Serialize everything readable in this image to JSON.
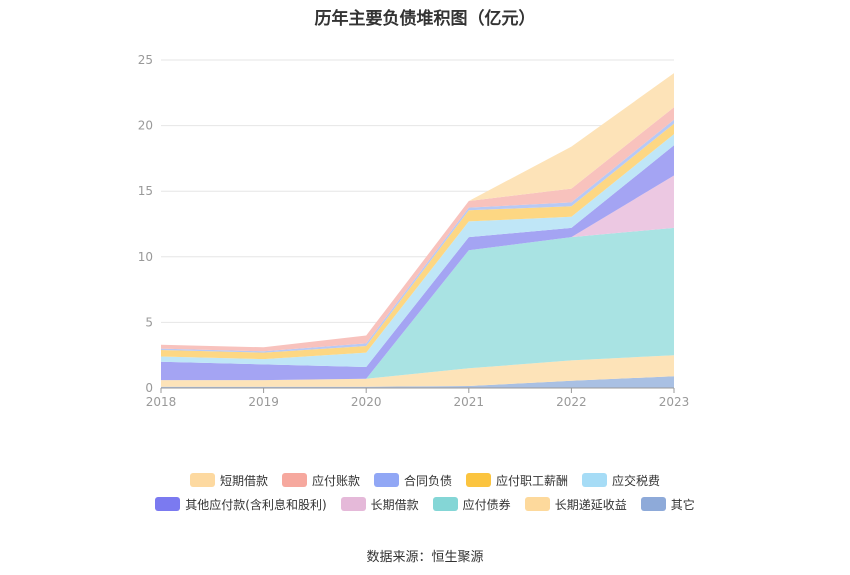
{
  "chart_data": {
    "type": "area",
    "stacked": true,
    "title": "历年主要负债堆积图（亿元）",
    "categories": [
      "2018",
      "2019",
      "2020",
      "2021",
      "2022",
      "2023"
    ],
    "ylim": [
      0,
      25
    ],
    "yticks": [
      0,
      5,
      10,
      15,
      20,
      25
    ],
    "grid": true,
    "legend_position": "bottom",
    "series": [
      {
        "name": "其它",
        "color": "#a9c0e3",
        "values": [
          0.1,
          0.1,
          0.1,
          0.15,
          0.55,
          0.9
        ]
      },
      {
        "name": "长期递延收益",
        "color": "#fde3b8",
        "values": [
          0.5,
          0.5,
          0.6,
          1.35,
          1.55,
          1.6
        ]
      },
      {
        "name": "应付债券",
        "color": "#a9e3e3",
        "values": [
          0.0,
          0.0,
          0.0,
          9.0,
          9.4,
          9.7
        ]
      },
      {
        "name": "长期借款",
        "color": "#ecc8e2",
        "values": [
          0.0,
          0.0,
          0.0,
          0.0,
          0.0,
          4.0
        ]
      },
      {
        "name": "其他应付款(含利息和股利)",
        "color": "#a4a4f3",
        "values": [
          1.4,
          1.2,
          0.9,
          1.0,
          0.7,
          2.3
        ]
      },
      {
        "name": "应交税费",
        "color": "#bfe6f7",
        "values": [
          0.4,
          0.4,
          1.1,
          1.2,
          0.85,
          0.85
        ]
      },
      {
        "name": "应付职工薪酬",
        "color": "#fdd783",
        "values": [
          0.5,
          0.5,
          0.5,
          0.85,
          0.8,
          0.8
        ]
      },
      {
        "name": "合同负债",
        "color": "#b7c9f5",
        "values": [
          0.1,
          0.1,
          0.2,
          0.2,
          0.3,
          0.3
        ]
      },
      {
        "name": "应付账款",
        "color": "#f8c2bd",
        "values": [
          0.3,
          0.3,
          0.6,
          0.5,
          1.05,
          0.95
        ]
      },
      {
        "name": "短期借款",
        "color": "#fde3b8",
        "values": [
          0.0,
          0.0,
          0.0,
          0.0,
          3.2,
          2.6
        ]
      }
    ],
    "legend": [
      [
        {
          "name": "短期借款",
          "color": "#fdd9a0"
        },
        {
          "name": "应付账款",
          "color": "#f6a89e"
        },
        {
          "name": "合同负债",
          "color": "#91a7f5"
        },
        {
          "name": "应付职工薪酬",
          "color": "#fbc43f"
        },
        {
          "name": "应交税费",
          "color": "#a6dcf6"
        }
      ],
      [
        {
          "name": "其他应付款(含利息和股利)",
          "color": "#7b7af0"
        },
        {
          "name": "长期借款",
          "color": "#e5b9d9"
        },
        {
          "name": "应付债券",
          "color": "#84d6d6"
        },
        {
          "name": "长期递延收益",
          "color": "#fdd99c"
        },
        {
          "name": "其它",
          "color": "#8eaad9"
        }
      ]
    ]
  },
  "source_text": "数据来源：恒生聚源"
}
